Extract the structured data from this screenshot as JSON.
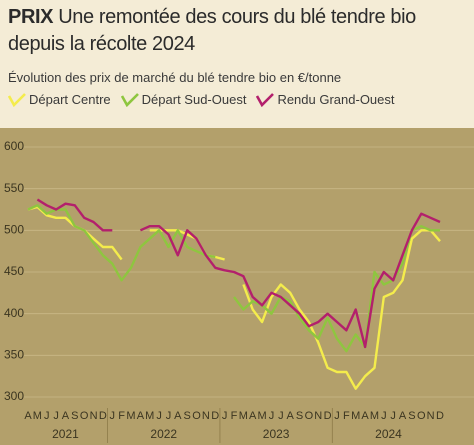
{
  "chart_data": {
    "type": "line",
    "label": "PRIX",
    "title": "Une remontée des cours du blé tendre bio depuis la récolte 2024",
    "subtitle": "Évolution des prix de marché du blé tendre bio en €/tonne",
    "categories": [
      "A",
      "M",
      "J",
      "J",
      "A",
      "S",
      "O",
      "N",
      "D",
      "J",
      "F",
      "M",
      "A",
      "M",
      "J",
      "J",
      "A",
      "S",
      "O",
      "N",
      "D",
      "J",
      "F",
      "M",
      "A",
      "M",
      "J",
      "J",
      "A",
      "S",
      "O",
      "N",
      "D",
      "J",
      "F",
      "M",
      "A",
      "M",
      "J",
      "J",
      "A",
      "S",
      "O",
      "N",
      "D"
    ],
    "years": [
      "2021",
      "2022",
      "2023",
      "2024"
    ],
    "ylim": [
      300,
      600
    ],
    "yticks": [
      300,
      350,
      400,
      450,
      500,
      550,
      600
    ],
    "grid": true,
    "series": [
      {
        "name": "Départ Centre",
        "color": "#f4ec4c",
        "values": [
          525,
          528,
          518,
          515,
          515,
          505,
          500,
          490,
          480,
          480,
          465,
          null,
          null,
          500,
          500,
          500,
          500,
          495,
          490,
          470,
          468,
          465,
          null,
          435,
          405,
          390,
          420,
          435,
          425,
          405,
          390,
          365,
          335,
          330,
          330,
          310,
          325,
          335,
          420,
          425,
          440,
          490,
          500,
          500,
          487
        ]
      },
      {
        "name": "Départ Sud-Ouest",
        "color": "#8ec63f",
        "values": [
          525,
          530,
          520,
          525,
          525,
          505,
          500,
          485,
          470,
          460,
          440,
          455,
          480,
          490,
          500,
          480,
          500,
          480,
          475,
          470,
          468,
          null,
          420,
          405,
          415,
          410,
          400,
          420,
          415,
          395,
          380,
          370,
          395,
          370,
          355,
          375,
          360,
          450,
          435,
          440,
          460,
          500,
          505,
          500,
          500
        ]
      },
      {
        "name": "Rendu Grand-Ouest",
        "color": "#b3206c",
        "values": [
          null,
          537,
          530,
          525,
          532,
          530,
          515,
          510,
          500,
          500,
          null,
          null,
          500,
          505,
          505,
          495,
          470,
          500,
          490,
          470,
          455,
          452,
          450,
          445,
          420,
          410,
          425,
          420,
          410,
          400,
          385,
          390,
          400,
          390,
          380,
          405,
          360,
          430,
          450,
          440,
          470,
          500,
          520,
          515,
          510
        ]
      }
    ]
  }
}
